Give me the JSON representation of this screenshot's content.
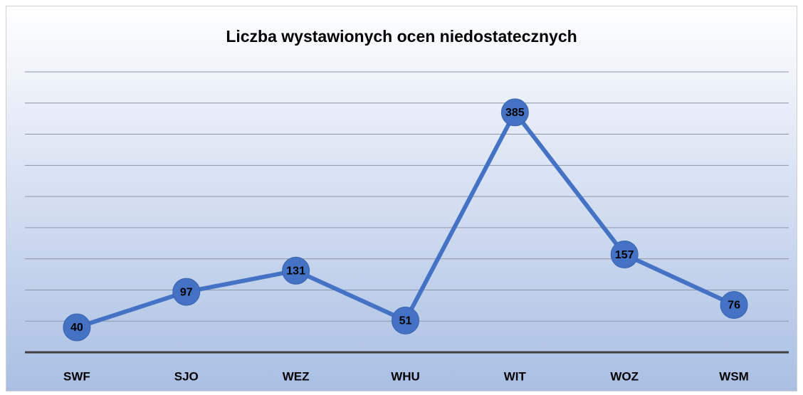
{
  "chart_data": {
    "type": "line",
    "title": "Liczba wystawionych ocen niedostatecznych",
    "categories": [
      "SWF",
      "SJO",
      "WEZ",
      "WHU",
      "WIT",
      "WOZ",
      "WSM"
    ],
    "values": [
      40,
      97,
      131,
      51,
      385,
      157,
      76
    ],
    "color": "#4472c4",
    "ylim": [
      0,
      450
    ],
    "yticks": [
      0,
      50,
      100,
      150,
      200,
      250,
      300,
      350,
      400,
      450
    ],
    "grid": true
  }
}
